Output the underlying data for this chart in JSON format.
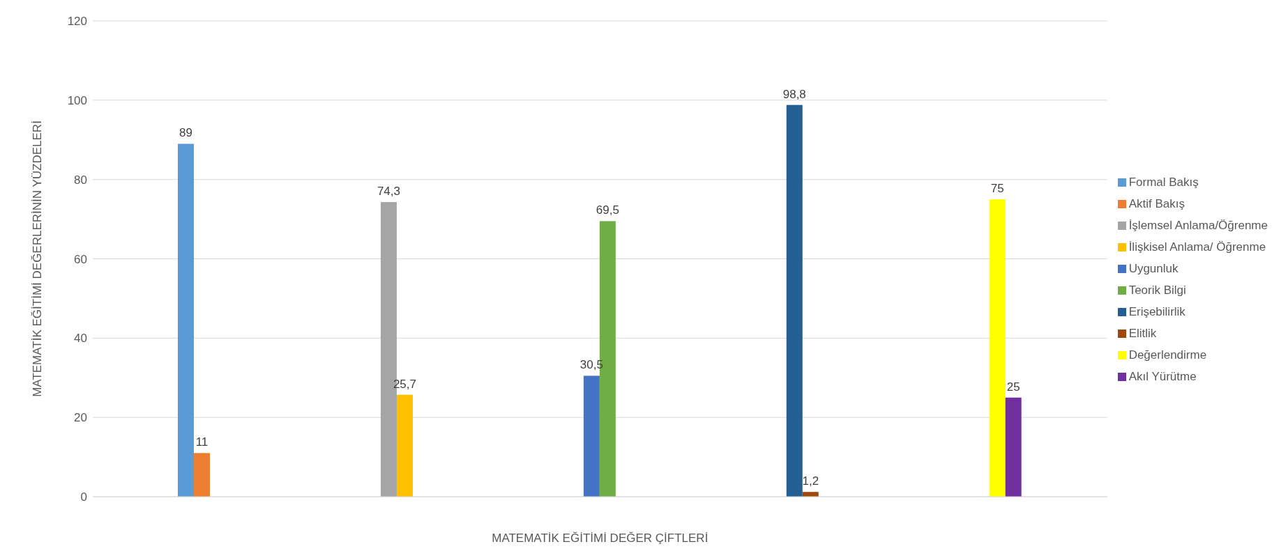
{
  "chart_data": {
    "type": "bar",
    "xlabel": "MATEMATİK EĞİTİMİ DEĞER ÇİFTLERİ",
    "ylabel": "MATEMATİK EĞİTİMİ DEĞERLERİNİN YÜZDELERİ",
    "categories": [
      null,
      null,
      null,
      null,
      null
    ],
    "series": [
      {
        "name": "Formal Bakış",
        "color": "#5b9bd5",
        "values": [
          89,
          null,
          null,
          null,
          null
        ],
        "value_labels": [
          "89",
          null,
          null,
          null,
          null
        ]
      },
      {
        "name": "Aktif Bakış",
        "color": "#ed7d31",
        "values": [
          11,
          null,
          null,
          null,
          null
        ],
        "value_labels": [
          "11",
          null,
          null,
          null,
          null
        ]
      },
      {
        "name": "İşlemsel Anlama/Öğrenme",
        "color": "#a5a5a5",
        "values": [
          null,
          74.3,
          null,
          null,
          null
        ],
        "value_labels": [
          null,
          "74,3",
          null,
          null,
          null
        ]
      },
      {
        "name": "İlişkisel Anlama/ Öğrenme",
        "color": "#ffc000",
        "values": [
          null,
          25.7,
          null,
          null,
          null
        ],
        "value_labels": [
          null,
          "25,7",
          null,
          null,
          null
        ]
      },
      {
        "name": "Uygunluk",
        "color": "#4472c4",
        "values": [
          null,
          null,
          30.5,
          null,
          null
        ],
        "value_labels": [
          null,
          null,
          "30,5",
          null,
          null
        ]
      },
      {
        "name": "Teorik Bilgi",
        "color": "#70ad47",
        "values": [
          null,
          null,
          69.5,
          null,
          null
        ],
        "value_labels": [
          null,
          null,
          "69,5",
          null,
          null
        ]
      },
      {
        "name": "Erişebilirlik",
        "color": "#255e91",
        "values": [
          null,
          null,
          null,
          98.8,
          null
        ],
        "value_labels": [
          null,
          null,
          null,
          "98,8",
          null
        ]
      },
      {
        "name": "Elitlik",
        "color": "#9e480e",
        "values": [
          null,
          null,
          null,
          1.2,
          null
        ],
        "value_labels": [
          null,
          null,
          null,
          "1,2",
          null
        ]
      },
      {
        "name": "Değerlendirme",
        "color": "#ffff00",
        "values": [
          null,
          null,
          null,
          null,
          75
        ],
        "value_labels": [
          null,
          null,
          null,
          null,
          "75"
        ]
      },
      {
        "name": "Akıl Yürütme",
        "color": "#7030a0",
        "values": [
          null,
          null,
          null,
          null,
          25
        ],
        "value_labels": [
          null,
          null,
          null,
          null,
          "25"
        ]
      }
    ],
    "ylim": [
      0,
      120
    ],
    "yticks": [
      0,
      20,
      40,
      60,
      80,
      100,
      120
    ],
    "grid": "y",
    "legend": "right"
  }
}
